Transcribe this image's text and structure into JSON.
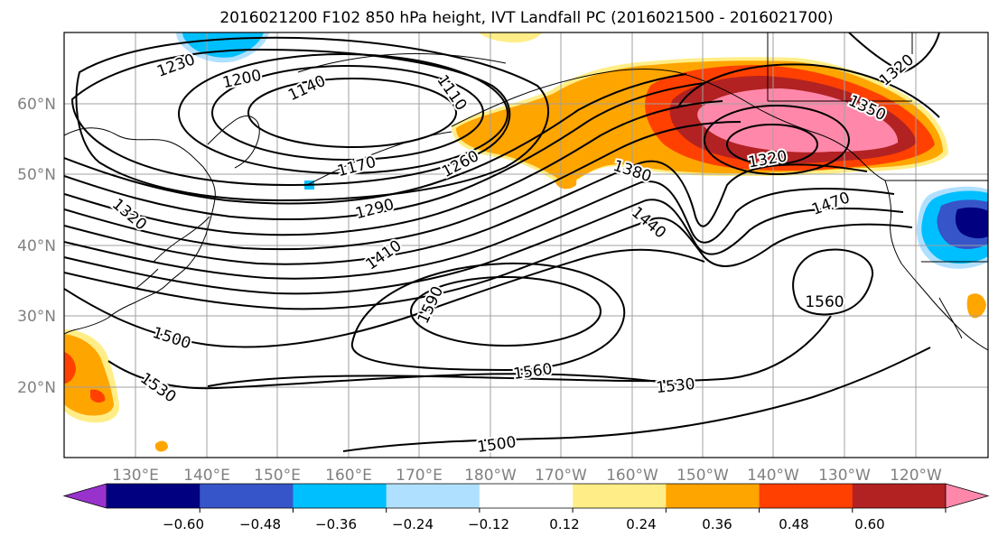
{
  "title": "2016021200 F102 850 hPa height, IVT Landfall PC (2016021500 - 2016021700)",
  "lon_labels": [
    "130°E",
    "140°E",
    "150°E",
    "160°E",
    "170°E",
    "180°W",
    "170°W",
    "160°W",
    "150°W",
    "140°W",
    "130°W",
    "120°W"
  ],
  "lat_labels": [
    "60°N",
    "50°N",
    "40°N",
    "30°N",
    "20°N"
  ],
  "contour_labels": [
    {
      "id": "c1230",
      "text": "1230"
    },
    {
      "id": "c1200",
      "text": "1200"
    },
    {
      "id": "c1140",
      "text": "1140"
    },
    {
      "id": "c1110",
      "text": "1110"
    },
    {
      "id": "c1170",
      "text": "1170"
    },
    {
      "id": "c1260",
      "text": "1260"
    },
    {
      "id": "c1290",
      "text": "1290"
    },
    {
      "id": "c1320w",
      "text": "1320"
    },
    {
      "id": "c1410",
      "text": "1410"
    },
    {
      "id": "c1590",
      "text": "1590"
    },
    {
      "id": "c1500w",
      "text": "1500"
    },
    {
      "id": "c1530w",
      "text": "1530"
    },
    {
      "id": "c1560c",
      "text": "1560"
    },
    {
      "id": "c1500s",
      "text": "1500"
    },
    {
      "id": "c1530c",
      "text": "1530"
    },
    {
      "id": "c1380",
      "text": "1380"
    },
    {
      "id": "c1440",
      "text": "1440"
    },
    {
      "id": "c1320e",
      "text": "1320"
    },
    {
      "id": "c1350",
      "text": "1350"
    },
    {
      "id": "c1320ne",
      "text": "1320"
    },
    {
      "id": "c1470",
      "text": "1470"
    },
    {
      "id": "c1560e",
      "text": "1560"
    }
  ],
  "colorbar": {
    "ticks": [
      "−0.60",
      "−0.48",
      "−0.36",
      "−0.24",
      "−0.12",
      "0.12",
      "0.24",
      "0.36",
      "0.48",
      "0.60"
    ],
    "colors": [
      "#9932cc",
      "#000080",
      "#3655c8",
      "#00bfff",
      "#b0e0ff",
      "#ffffff",
      "#ffee88",
      "#ffa500",
      "#ff4000",
      "#b22222",
      "#ff88aa"
    ]
  },
  "colors": {
    "pink": "#ff88aa",
    "darkred": "#b22222",
    "red": "#ff4000",
    "orange": "#ffa500",
    "yellow": "#ffee88",
    "lightblue": "#b0e0ff",
    "cyan": "#00bfff",
    "blue": "#3655c8",
    "navy": "#000080"
  }
}
